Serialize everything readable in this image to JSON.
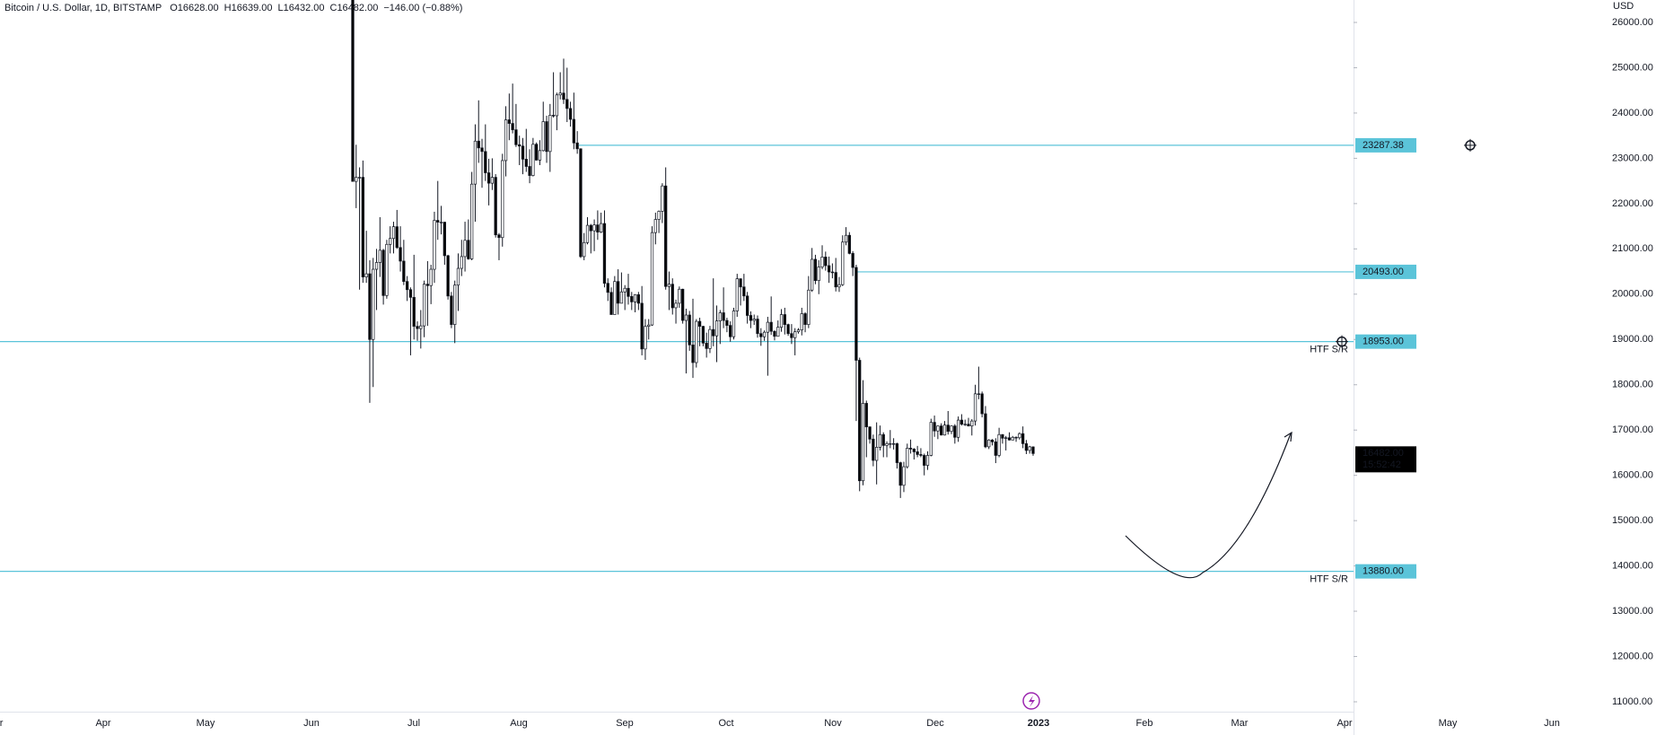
{
  "chart_data": {
    "type": "candlestick",
    "header": {
      "symbol": "Bitcoin / U.S. Dollar, 1D, BITSTAMP",
      "open": "O16628.00",
      "high": "H16639.00",
      "low": "L16432.00",
      "close": "C16482.00",
      "change": "−146.00 (−0.88%)"
    },
    "y_unit": "USD",
    "ylim": [
      11000,
      26000
    ],
    "yticks": [
      {
        "value": 11000,
        "label": "11000.00"
      },
      {
        "value": 12000,
        "label": "12000.00"
      },
      {
        "value": 13000,
        "label": "13000.00"
      },
      {
        "value": 14000,
        "label": "14000.00"
      },
      {
        "value": 15000,
        "label": "15000.00"
      },
      {
        "value": 16000,
        "label": "16000.00"
      },
      {
        "value": 17000,
        "label": "17000.00"
      },
      {
        "value": 18000,
        "label": "18000.00"
      },
      {
        "value": 19000,
        "label": "19000.00"
      },
      {
        "value": 20000,
        "label": "20000.00"
      },
      {
        "value": 21000,
        "label": "21000.00"
      },
      {
        "value": 22000,
        "label": "22000.00"
      },
      {
        "value": 23000,
        "label": "23000.00"
      },
      {
        "value": 24000,
        "label": "24000.00"
      },
      {
        "value": 25000,
        "label": "25000.00"
      },
      {
        "value": 26000,
        "label": "26000.00"
      }
    ],
    "x_labels": [
      "Mar",
      "Apr",
      "May",
      "Jun",
      "Jul",
      "Aug",
      "Sep",
      "Oct",
      "Nov",
      "Dec",
      "2023",
      "Feb",
      "Mar",
      "Apr",
      "May",
      "Jun"
    ],
    "last_price": {
      "value": 16482,
      "label": "16482.00",
      "countdown": "15:52:42"
    },
    "levels": [
      {
        "value": 23287.38,
        "label": "23287.38",
        "color": "#5bc4d9"
      },
      {
        "value": 20493,
        "label": "20493.00",
        "color": "#5bc4d9"
      },
      {
        "value": 18953,
        "label": "18953.00",
        "note": "HTF S/R",
        "color": "#5bc4d9"
      },
      {
        "value": 13880,
        "label": "13880.00",
        "note": "HTF S/R",
        "color": "#5bc4d9"
      }
    ],
    "up_color": "#ffffff",
    "down_color": "#000000",
    "candles": [
      [
        26580,
        26900,
        22600,
        22490
      ],
      [
        22490,
        23300,
        21900,
        22580
      ],
      [
        22580,
        22800,
        20100,
        22580
      ],
      [
        22580,
        22950,
        20250,
        20380
      ],
      [
        20380,
        21400,
        20250,
        20450
      ],
      [
        20450,
        20750,
        17600,
        19000
      ],
      [
        19000,
        20800,
        17950,
        20550
      ],
      [
        20550,
        21000,
        19650,
        20700
      ],
      [
        20700,
        21700,
        20380,
        20970
      ],
      [
        20970,
        21000,
        19770,
        19970
      ],
      [
        19970,
        21200,
        19900,
        21100
      ],
      [
        21100,
        21500,
        20900,
        21230
      ],
      [
        21230,
        21600,
        20900,
        21490
      ],
      [
        21490,
        21860,
        21000,
        21030
      ],
      [
        21030,
        21500,
        20500,
        20730
      ],
      [
        20730,
        21200,
        20200,
        20280
      ],
      [
        20280,
        20400,
        19850,
        20100
      ],
      [
        20100,
        20150,
        18650,
        19930
      ],
      [
        19930,
        20870,
        19000,
        19290
      ],
      [
        19290,
        19400,
        18970,
        19240
      ],
      [
        19240,
        19650,
        18800,
        19300
      ],
      [
        19300,
        20300,
        19050,
        20220
      ],
      [
        20220,
        20730,
        19300,
        20190
      ],
      [
        20190,
        20650,
        19780,
        20550
      ],
      [
        20550,
        21820,
        20250,
        21630
      ],
      [
        21630,
        22500,
        21200,
        21590
      ],
      [
        21590,
        21950,
        21320,
        21590
      ],
      [
        21590,
        21600,
        20650,
        20850
      ],
      [
        20850,
        20870,
        19880,
        19960
      ],
      [
        19960,
        20050,
        19250,
        19330
      ],
      [
        19330,
        20300,
        18920,
        20200
      ],
      [
        20200,
        20900,
        19630,
        20570
      ],
      [
        20570,
        21200,
        20400,
        20830
      ],
      [
        20830,
        21600,
        20500,
        21190
      ],
      [
        21190,
        21650,
        20760,
        20780
      ],
      [
        20780,
        22700,
        20750,
        22430
      ],
      [
        22430,
        23750,
        21600,
        23380
      ],
      [
        23380,
        24280,
        22900,
        23230
      ],
      [
        23230,
        23430,
        22350,
        23150
      ],
      [
        23150,
        23750,
        22500,
        22680
      ],
      [
        22680,
        22990,
        21960,
        22450
      ],
      [
        22450,
        23000,
        22300,
        22580
      ],
      [
        22580,
        22650,
        21250,
        21310
      ],
      [
        21310,
        21350,
        20750,
        21250
      ],
      [
        21250,
        23100,
        21050,
        22950
      ],
      [
        22950,
        24150,
        22600,
        23850
      ],
      [
        23850,
        24430,
        23400,
        23770
      ],
      [
        23770,
        24650,
        23550,
        23630
      ],
      [
        23630,
        24200,
        23250,
        23300
      ],
      [
        23300,
        23500,
        22850,
        23270
      ],
      [
        23270,
        23450,
        22650,
        22980
      ],
      [
        22980,
        23650,
        22700,
        22820
      ],
      [
        22820,
        23200,
        22450,
        22620
      ],
      [
        22620,
        23450,
        22600,
        23310
      ],
      [
        23310,
        23350,
        22950,
        22960
      ],
      [
        22960,
        23400,
        22850,
        23170
      ],
      [
        23170,
        24250,
        23150,
        23810
      ],
      [
        23810,
        23940,
        22900,
        23150
      ],
      [
        23150,
        24200,
        22700,
        23950
      ],
      [
        23950,
        24900,
        23900,
        23940
      ],
      [
        23940,
        24450,
        23620,
        24400
      ],
      [
        24400,
        24900,
        24300,
        24440
      ],
      [
        24440,
        25200,
        24200,
        24300
      ],
      [
        24300,
        25000,
        23800,
        24100
      ],
      [
        24100,
        24250,
        23700,
        23860
      ],
      [
        23860,
        24450,
        23200,
        23340
      ],
      [
        23340,
        23600,
        23100,
        23210
      ],
      [
        23210,
        23220,
        20800,
        20830
      ],
      [
        20830,
        21350,
        20750,
        21140
      ],
      [
        21140,
        21700,
        21100,
        21520
      ],
      [
        21520,
        21550,
        20900,
        21400
      ],
      [
        21400,
        21650,
        20950,
        21530
      ],
      [
        21530,
        21850,
        21200,
        21370
      ],
      [
        21370,
        21800,
        21350,
        21560
      ],
      [
        21560,
        21850,
        20150,
        20240
      ],
      [
        20240,
        20350,
        19850,
        20040
      ],
      [
        20040,
        20150,
        19550,
        19550
      ],
      [
        19550,
        20400,
        19550,
        20280
      ],
      [
        20280,
        20550,
        19550,
        19800
      ],
      [
        19800,
        20480,
        19800,
        20050
      ],
      [
        20050,
        20200,
        19650,
        20130
      ],
      [
        20130,
        20450,
        19770,
        19950
      ],
      [
        19950,
        20050,
        19650,
        19830
      ],
      [
        19830,
        20000,
        19600,
        19990
      ],
      [
        19990,
        20050,
        19650,
        19800
      ],
      [
        19800,
        20180,
        18650,
        18790
      ],
      [
        18790,
        19450,
        18550,
        19290
      ],
      [
        19290,
        19450,
        19000,
        19320
      ],
      [
        19320,
        21500,
        19300,
        21360
      ],
      [
        21360,
        21800,
        21100,
        21650
      ],
      [
        21650,
        21850,
        21350,
        21830
      ],
      [
        21830,
        22450,
        21570,
        22390
      ],
      [
        22390,
        22800,
        20100,
        20170
      ],
      [
        20170,
        20500,
        19650,
        20220
      ],
      [
        20220,
        20350,
        19550,
        19700
      ],
      [
        19700,
        19880,
        19350,
        19800
      ],
      [
        19800,
        20170,
        19700,
        20110
      ],
      [
        20110,
        20120,
        19350,
        19420
      ],
      [
        19420,
        19680,
        18250,
        19540
      ],
      [
        19540,
        19630,
        18750,
        18880
      ],
      [
        18880,
        19900,
        18150,
        18490
      ],
      [
        18490,
        19450,
        18380,
        19400
      ],
      [
        19400,
        19480,
        18850,
        19290
      ],
      [
        19290,
        19300,
        18850,
        18920
      ],
      [
        18920,
        19150,
        18600,
        18800
      ],
      [
        18800,
        19300,
        18700,
        19220
      ],
      [
        19220,
        20350,
        18850,
        19080
      ],
      [
        19080,
        19750,
        18500,
        19410
      ],
      [
        19410,
        19650,
        18900,
        19590
      ],
      [
        19590,
        20150,
        19250,
        19420
      ],
      [
        19420,
        19480,
        19160,
        19310
      ],
      [
        19310,
        19400,
        18950,
        19060
      ],
      [
        19060,
        19700,
        19000,
        19630
      ],
      [
        19630,
        20450,
        19500,
        20340
      ],
      [
        20340,
        20350,
        19750,
        20160
      ],
      [
        20160,
        20450,
        19850,
        19960
      ],
      [
        19960,
        20050,
        19350,
        19530
      ],
      [
        19530,
        19620,
        19250,
        19420
      ],
      [
        19420,
        19550,
        19320,
        19450
      ],
      [
        19450,
        19530,
        19040,
        19130
      ],
      [
        19130,
        19250,
        18860,
        19060
      ],
      [
        19060,
        19200,
        18970,
        19160
      ],
      [
        19160,
        19500,
        18200,
        19380
      ],
      [
        19380,
        19950,
        19100,
        19180
      ],
      [
        19180,
        19200,
        18980,
        19070
      ],
      [
        19070,
        19420,
        19070,
        19270
      ],
      [
        19270,
        19670,
        19170,
        19550
      ],
      [
        19550,
        19700,
        19110,
        19330
      ],
      [
        19330,
        19350,
        19080,
        19130
      ],
      [
        19130,
        19340,
        18900,
        19040
      ],
      [
        19040,
        19250,
        18650,
        19170
      ],
      [
        19170,
        19250,
        19130,
        19210
      ],
      [
        19210,
        19700,
        19090,
        19570
      ],
      [
        19570,
        19600,
        19160,
        19330
      ],
      [
        19330,
        20400,
        19250,
        20090
      ],
      [
        20090,
        21020,
        20050,
        20770
      ],
      [
        20770,
        20870,
        20220,
        20300
      ],
      [
        20300,
        20750,
        20000,
        20600
      ],
      [
        20600,
        21080,
        20550,
        20820
      ],
      [
        20820,
        20940,
        20520,
        20630
      ],
      [
        20630,
        20830,
        20250,
        20490
      ],
      [
        20490,
        20680,
        20350,
        20480
      ],
      [
        20480,
        20800,
        20060,
        20160
      ],
      [
        20160,
        20380,
        20050,
        20210
      ],
      [
        20210,
        21300,
        20180,
        21150
      ],
      [
        21150,
        21480,
        21080,
        21300
      ],
      [
        21300,
        21370,
        20880,
        20900
      ],
      [
        20900,
        20950,
        20400,
        20590
      ],
      [
        20590,
        20650,
        17200,
        18540
      ],
      [
        18540,
        18600,
        15650,
        15880
      ],
      [
        15880,
        18100,
        15780,
        17590
      ],
      [
        17590,
        17650,
        16400,
        17070
      ],
      [
        17070,
        17080,
        16700,
        16800
      ],
      [
        16800,
        16900,
        16200,
        16330
      ],
      [
        16330,
        17170,
        15800,
        16620
      ],
      [
        16620,
        17100,
        16550,
        16900
      ],
      [
        16900,
        16950,
        16400,
        16660
      ],
      [
        16660,
        16750,
        16400,
        16700
      ],
      [
        16700,
        17000,
        16600,
        16700
      ],
      [
        16700,
        16820,
        16570,
        16700
      ],
      [
        16700,
        16720,
        16150,
        16280
      ],
      [
        16280,
        16300,
        15500,
        15780
      ],
      [
        15780,
        16300,
        15630,
        16190
      ],
      [
        16190,
        16700,
        16150,
        16600
      ],
      [
        16600,
        16790,
        16480,
        16580
      ],
      [
        16580,
        16600,
        16350,
        16520
      ],
      [
        16520,
        16650,
        16400,
        16460
      ],
      [
        16460,
        16600,
        16400,
        16440
      ],
      [
        16440,
        16480,
        16000,
        16220
      ],
      [
        16220,
        16530,
        16120,
        16440
      ],
      [
        16440,
        17250,
        16420,
        17170
      ],
      [
        17170,
        17320,
        16850,
        16980
      ],
      [
        16980,
        17100,
        16800,
        17090
      ],
      [
        17090,
        17150,
        16880,
        16890
      ],
      [
        16890,
        17200,
        16880,
        17110
      ],
      [
        17110,
        17420,
        16900,
        16970
      ],
      [
        16970,
        17100,
        16910,
        17090
      ],
      [
        17090,
        17130,
        16700,
        16840
      ],
      [
        16840,
        17300,
        16740,
        17220
      ],
      [
        17220,
        17350,
        17100,
        17130
      ],
      [
        17130,
        17230,
        17090,
        17130
      ],
      [
        17130,
        17270,
        17080,
        17090
      ],
      [
        17090,
        17240,
        16880,
        17200
      ],
      [
        17200,
        18000,
        17100,
        17800
      ],
      [
        17800,
        18400,
        17680,
        17800
      ],
      [
        17800,
        17850,
        17280,
        17360
      ],
      [
        17360,
        17530,
        16600,
        16630
      ],
      [
        16630,
        16800,
        16580,
        16780
      ],
      [
        16780,
        16800,
        16660,
        16740
      ],
      [
        16740,
        16820,
        16270,
        16440
      ],
      [
        16440,
        17050,
        16400,
        16900
      ],
      [
        16900,
        16910,
        16700,
        16820
      ],
      [
        16820,
        16870,
        16550,
        16830
      ],
      [
        16830,
        16950,
        16770,
        16780
      ],
      [
        16780,
        16870,
        16780,
        16840
      ],
      [
        16840,
        16860,
        16740,
        16830
      ],
      [
        16830,
        16950,
        16790,
        16920
      ],
      [
        16920,
        17080,
        16600,
        16700
      ],
      [
        16700,
        16780,
        16470,
        16550
      ],
      [
        16550,
        16650,
        16480,
        16630
      ],
      [
        16628,
        16639,
        16432,
        16482
      ]
    ]
  }
}
